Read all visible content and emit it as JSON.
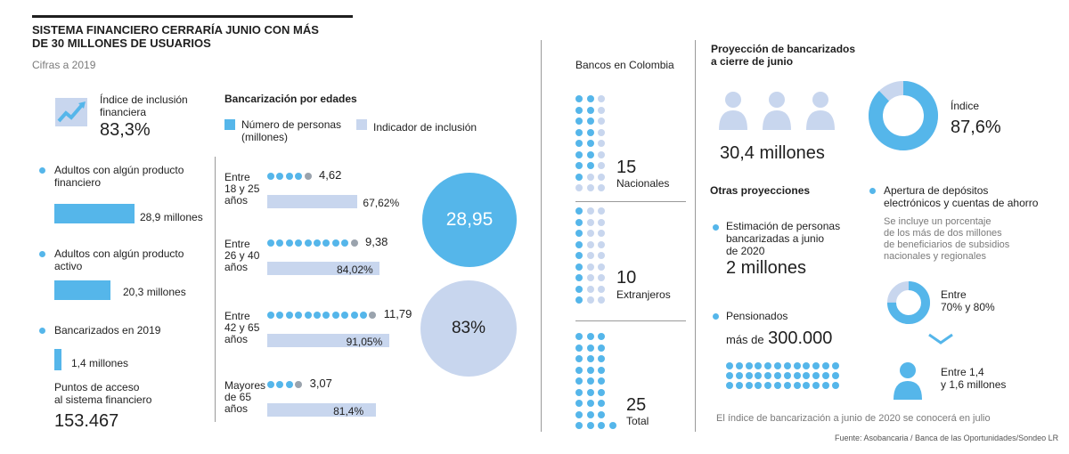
{
  "header": {
    "title_line1": "SISTEMA FINANCIERO CERRARÍA JUNIO CON MÁS",
    "title_line2": "DE 30 MILLONES DE USUARIOS",
    "subtitle": "Cifras a 2019"
  },
  "left": {
    "inclusion_label_1": "Índice de inclusión",
    "inclusion_label_2": "financiera",
    "inclusion_value": "83,3%",
    "stats": [
      {
        "label_1": "Adultos con algún producto",
        "label_2": "financiero",
        "value_label": "28,9 millones",
        "value": 28.9
      },
      {
        "label_1": "Adultos con algún producto",
        "label_2": "activo",
        "value_label": "20,3 millones",
        "value": 20.3
      },
      {
        "label_1": "Bancarizados en 2019",
        "label_2": "",
        "value_label": "1,4 millones",
        "value": 1.4
      }
    ],
    "access_label_1": "Puntos de acceso",
    "access_label_2": "al sistema financiero",
    "access_value": "153.467"
  },
  "ages": {
    "title": "Bancarización por edades",
    "legend_people_1": "Número de personas",
    "legend_people_2": "(millones)",
    "legend_index": "Indicador de inclusión",
    "total_people": "28,95",
    "total_index": "83%"
  },
  "chart_data": {
    "type": "bar",
    "title": "Bancarización por edades",
    "categories": [
      "Entre 18 y 25 años",
      "Entre 26 y 40 años",
      "Entre 42 y 65 años",
      "Mayores de 65 años"
    ],
    "category_lines": [
      [
        "Entre",
        "18 y 25",
        "años"
      ],
      [
        "Entre",
        "26 y 40",
        "años"
      ],
      [
        "Entre",
        "42 y 65",
        "años"
      ],
      [
        "Mayores",
        "de 65",
        "años"
      ]
    ],
    "series": [
      {
        "name": "Número de personas (millones)",
        "values": [
          4.62,
          9.38,
          11.79,
          3.07
        ],
        "labels": [
          "4,62",
          "9,38",
          "11,79",
          "3,07"
        ]
      },
      {
        "name": "Indicador de inclusión",
        "values": [
          67.62,
          84.02,
          91.05,
          81.4
        ],
        "labels": [
          "67,62%",
          "84,02%",
          "91,05%",
          "81,4%"
        ]
      }
    ]
  },
  "banks": {
    "title": "Bancos en Colombia",
    "national_count": "15",
    "national_label": "Nacionales",
    "foreign_count": "10",
    "foreign_label": "Extranjeros",
    "total_count": "25",
    "total_label": "Total"
  },
  "projection": {
    "title_1": "Proyección de bancarizados",
    "title_2": "a cierre de junio",
    "people_value": "30,4 millones",
    "index_label": "Índice",
    "index_value": "87,6%",
    "index_fraction": 0.876,
    "other_title": "Otras proyecciones",
    "estimate_label_1": "Estimación de personas",
    "estimate_label_2": "bancarizadas a junio",
    "estimate_label_3": "de 2020",
    "estimate_value": "2 millones",
    "pension_label": "Pensionados",
    "pension_prefix": "más de",
    "pension_value": "300.000",
    "deposits_label_1": "Apertura de depósitos",
    "deposits_label_2": "electrónicos y cuentas de ahorro",
    "note_1": "Se incluye un porcentaje",
    "note_2": "de los más de dos millones",
    "note_3": "de beneficiarios de subsidios",
    "note_4": "nacionales y regionales",
    "range_pct_1": "Entre",
    "range_pct_2": "70% y 80%",
    "range_people_1": "Entre 1,4",
    "range_people_2": "y 1,6 millones",
    "footnote": "El índice de bancarización a junio de 2020 se conocerá en julio"
  },
  "source": "Fuente: Asobancaria /  Banca de las Oportunidades/Sondeo LR",
  "colors": {
    "blue": "#55b6ea",
    "pale": "#c8d6ee",
    "gray_dot": "#9aa3ad"
  }
}
